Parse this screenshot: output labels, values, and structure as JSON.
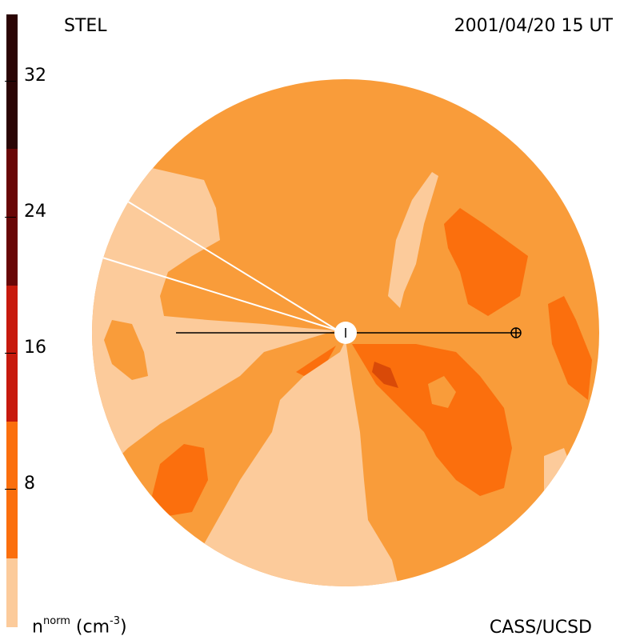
{
  "header": {
    "station": "STEL",
    "datetime": "2001/04/20 15 UT"
  },
  "footer": {
    "credit": "CASS/UCSD"
  },
  "colorbar": {
    "quantity": "n",
    "quantity_sup": "norm",
    "unit_open": " (cm",
    "unit_exp": "-3",
    "unit_close": ")",
    "ticks": [
      "32",
      "24",
      "16",
      "8"
    ],
    "levels": [
      {
        "color": "#fccb9b"
      },
      {
        "color": "#f99c3a"
      },
      {
        "color": "#fb6f0d"
      },
      {
        "color": "#e84e0c"
      },
      {
        "color": "#c71a0d"
      },
      {
        "color": "#980a0a"
      },
      {
        "color": "#690707"
      },
      {
        "color": "#2b0505"
      }
    ]
  },
  "map": {
    "background": "#f99c3a",
    "sun": "white disc at center",
    "earth_symbol": "⊕"
  }
}
